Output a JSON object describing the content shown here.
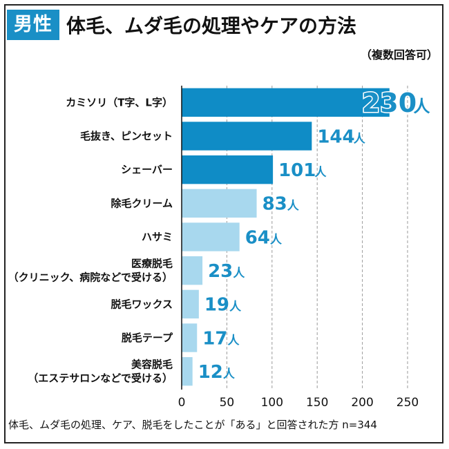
{
  "header": {
    "badge": "男性",
    "title": "体毛、ムダ毛の処理やケアの方法",
    "subtitle": "（複数回答可）"
  },
  "footnote": "体毛、ムダ毛の処理、ケア、脱毛をしたことが「ある」と回答された方 n=344",
  "colors": {
    "dark_bar": "#0f8cc6",
    "light_bar": "#a8d8ee",
    "value_text": "#1a8fc6"
  },
  "chart_data": {
    "type": "bar",
    "orientation": "horizontal",
    "categories": [
      [
        "カミソリ（T字、L字）"
      ],
      [
        "毛抜き、ピンセット"
      ],
      [
        "シェーバー"
      ],
      [
        "除毛クリーム"
      ],
      [
        "ハサミ"
      ],
      [
        "医療脱毛",
        "（クリニック、病院などで受ける）"
      ],
      [
        "脱毛ワックス"
      ],
      [
        "脱毛テープ"
      ],
      [
        "美容脱毛",
        "（エステサロンなどで受ける）"
      ]
    ],
    "values": [
      230,
      144,
      101,
      83,
      64,
      23,
      19,
      17,
      12
    ],
    "unit": "人",
    "highlight_top": 3,
    "xlim": [
      0,
      250
    ],
    "xticks": [
      0,
      50,
      100,
      150,
      200,
      250
    ],
    "grid": "dashed vertical"
  }
}
